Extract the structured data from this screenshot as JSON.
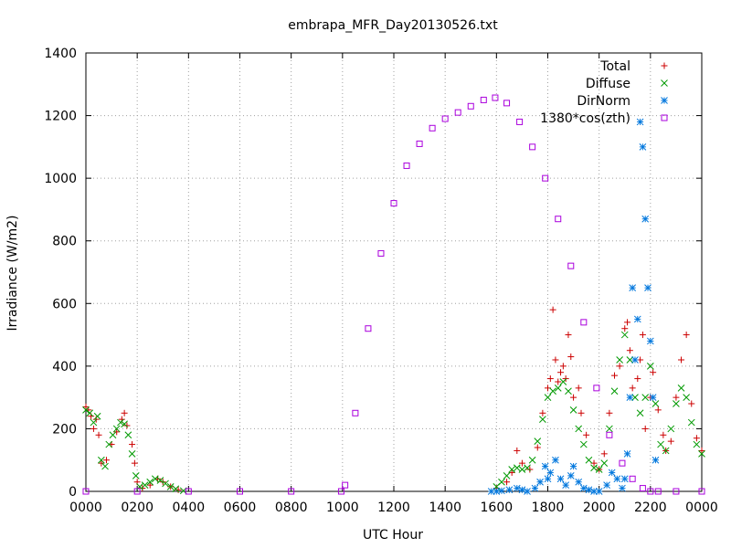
{
  "chart_data": {
    "type": "scatter",
    "title": "embrapa_MFR_Day20130526.txt",
    "xlabel": "UTC Hour",
    "ylabel": "Irradiance (W/m2)",
    "xlim": [
      0,
      24
    ],
    "ylim": [
      0,
      1400
    ],
    "x_ticks": [
      0,
      2,
      4,
      6,
      8,
      10,
      12,
      14,
      16,
      18,
      20,
      22,
      24
    ],
    "x_tick_labels": [
      "0000",
      "0200",
      "0400",
      "0600",
      "0800",
      "1000",
      "1200",
      "1400",
      "1600",
      "1800",
      "2000",
      "2200",
      "0000"
    ],
    "y_ticks": [
      0,
      200,
      400,
      600,
      800,
      1000,
      1200,
      1400
    ],
    "y_tick_labels": [
      "0",
      "200",
      "400",
      "600",
      "800",
      "1000",
      "1200",
      "1400"
    ],
    "grid": true,
    "legend_position": "top-right",
    "series": [
      {
        "name": "Total",
        "marker": "plus",
        "color": "#cc0000",
        "points": [
          [
            0.0,
            270
          ],
          [
            0.1,
            260
          ],
          [
            0.2,
            240
          ],
          [
            0.3,
            200
          ],
          [
            0.4,
            230
          ],
          [
            0.5,
            180
          ],
          [
            0.6,
            90
          ],
          [
            0.8,
            100
          ],
          [
            1.0,
            150
          ],
          [
            1.2,
            190
          ],
          [
            1.4,
            230
          ],
          [
            1.5,
            250
          ],
          [
            1.6,
            210
          ],
          [
            1.8,
            150
          ],
          [
            1.9,
            90
          ],
          [
            2.0,
            30
          ],
          [
            2.2,
            10
          ],
          [
            2.5,
            20
          ],
          [
            2.8,
            40
          ],
          [
            3.0,
            30
          ],
          [
            3.3,
            15
          ],
          [
            3.6,
            5
          ],
          [
            16.0,
            10
          ],
          [
            16.4,
            30
          ],
          [
            16.6,
            60
          ],
          [
            16.8,
            130
          ],
          [
            17.0,
            90
          ],
          [
            17.3,
            70
          ],
          [
            17.6,
            140
          ],
          [
            17.8,
            250
          ],
          [
            18.0,
            330
          ],
          [
            18.1,
            360
          ],
          [
            18.2,
            580
          ],
          [
            18.3,
            420
          ],
          [
            18.4,
            350
          ],
          [
            18.5,
            380
          ],
          [
            18.6,
            400
          ],
          [
            18.7,
            360
          ],
          [
            18.8,
            500
          ],
          [
            18.9,
            430
          ],
          [
            19.0,
            300
          ],
          [
            19.2,
            330
          ],
          [
            19.3,
            250
          ],
          [
            19.5,
            180
          ],
          [
            19.8,
            90
          ],
          [
            20.0,
            70
          ],
          [
            20.2,
            120
          ],
          [
            20.4,
            250
          ],
          [
            20.6,
            370
          ],
          [
            20.8,
            400
          ],
          [
            21.0,
            520
          ],
          [
            21.1,
            540
          ],
          [
            21.2,
            450
          ],
          [
            21.3,
            330
          ],
          [
            21.5,
            360
          ],
          [
            21.6,
            420
          ],
          [
            21.7,
            500
          ],
          [
            21.8,
            200
          ],
          [
            22.0,
            300
          ],
          [
            22.1,
            380
          ],
          [
            22.3,
            260
          ],
          [
            22.5,
            180
          ],
          [
            22.6,
            130
          ],
          [
            22.8,
            160
          ],
          [
            23.0,
            300
          ],
          [
            23.2,
            420
          ],
          [
            23.4,
            500
          ],
          [
            23.6,
            280
          ],
          [
            23.8,
            170
          ],
          [
            24.0,
            130
          ]
        ]
      },
      {
        "name": "Diffuse",
        "marker": "cross",
        "color": "#009900",
        "points": [
          [
            0.0,
            260
          ],
          [
            0.15,
            250
          ],
          [
            0.3,
            220
          ],
          [
            0.45,
            240
          ],
          [
            0.6,
            100
          ],
          [
            0.75,
            80
          ],
          [
            0.9,
            150
          ],
          [
            1.05,
            180
          ],
          [
            1.2,
            200
          ],
          [
            1.35,
            220
          ],
          [
            1.5,
            215
          ],
          [
            1.65,
            180
          ],
          [
            1.8,
            120
          ],
          [
            1.95,
            50
          ],
          [
            2.1,
            15
          ],
          [
            2.3,
            20
          ],
          [
            2.5,
            30
          ],
          [
            2.7,
            40
          ],
          [
            2.9,
            35
          ],
          [
            3.1,
            25
          ],
          [
            3.3,
            15
          ],
          [
            3.5,
            8
          ],
          [
            3.8,
            2
          ],
          [
            16.0,
            15
          ],
          [
            16.2,
            30
          ],
          [
            16.4,
            50
          ],
          [
            16.6,
            70
          ],
          [
            16.8,
            75
          ],
          [
            17.0,
            70
          ],
          [
            17.2,
            75
          ],
          [
            17.4,
            100
          ],
          [
            17.6,
            160
          ],
          [
            17.8,
            230
          ],
          [
            18.0,
            300
          ],
          [
            18.2,
            320
          ],
          [
            18.4,
            330
          ],
          [
            18.6,
            350
          ],
          [
            18.8,
            320
          ],
          [
            19.0,
            260
          ],
          [
            19.2,
            200
          ],
          [
            19.4,
            150
          ],
          [
            19.6,
            100
          ],
          [
            19.8,
            75
          ],
          [
            20.0,
            70
          ],
          [
            20.2,
            90
          ],
          [
            20.4,
            200
          ],
          [
            20.6,
            320
          ],
          [
            20.8,
            420
          ],
          [
            21.0,
            500
          ],
          [
            21.2,
            420
          ],
          [
            21.4,
            300
          ],
          [
            21.6,
            250
          ],
          [
            21.8,
            300
          ],
          [
            22.0,
            400
          ],
          [
            22.2,
            280
          ],
          [
            22.4,
            150
          ],
          [
            22.6,
            130
          ],
          [
            22.8,
            200
          ],
          [
            23.0,
            280
          ],
          [
            23.2,
            330
          ],
          [
            23.4,
            300
          ],
          [
            23.6,
            220
          ],
          [
            23.8,
            150
          ],
          [
            24.0,
            120
          ]
        ]
      },
      {
        "name": "DirNorm",
        "marker": "star",
        "color": "#0077dd",
        "points": [
          [
            15.8,
            0
          ],
          [
            16.0,
            0
          ],
          [
            16.2,
            2
          ],
          [
            16.5,
            5
          ],
          [
            16.8,
            10
          ],
          [
            17.0,
            5
          ],
          [
            17.2,
            0
          ],
          [
            17.5,
            10
          ],
          [
            17.7,
            30
          ],
          [
            17.9,
            80
          ],
          [
            18.0,
            40
          ],
          [
            18.1,
            60
          ],
          [
            18.3,
            100
          ],
          [
            18.5,
            40
          ],
          [
            18.7,
            20
          ],
          [
            18.9,
            50
          ],
          [
            19.0,
            80
          ],
          [
            19.2,
            30
          ],
          [
            19.4,
            10
          ],
          [
            19.6,
            5
          ],
          [
            19.8,
            0
          ],
          [
            20.0,
            0
          ],
          [
            20.3,
            20
          ],
          [
            20.5,
            60
          ],
          [
            20.7,
            40
          ],
          [
            20.9,
            10
          ],
          [
            21.0,
            40
          ],
          [
            21.1,
            120
          ],
          [
            21.2,
            300
          ],
          [
            21.3,
            650
          ],
          [
            21.4,
            420
          ],
          [
            21.5,
            550
          ],
          [
            21.6,
            1180
          ],
          [
            21.7,
            1100
          ],
          [
            21.8,
            870
          ],
          [
            21.9,
            650
          ],
          [
            22.0,
            480
          ],
          [
            22.1,
            300
          ],
          [
            22.2,
            100
          ]
        ]
      },
      {
        "name": "1380*cos(zth)",
        "marker": "square",
        "color": "#aa00dd",
        "points": [
          [
            0.0,
            0
          ],
          [
            2.0,
            0
          ],
          [
            4.0,
            0
          ],
          [
            6.0,
            0
          ],
          [
            8.0,
            0
          ],
          [
            9.95,
            0
          ],
          [
            10.1,
            20
          ],
          [
            10.5,
            250
          ],
          [
            11.0,
            520
          ],
          [
            11.5,
            760
          ],
          [
            12.0,
            920
          ],
          [
            12.5,
            1040
          ],
          [
            13.0,
            1110
          ],
          [
            13.5,
            1160
          ],
          [
            14.0,
            1190
          ],
          [
            14.5,
            1210
          ],
          [
            15.0,
            1230
          ],
          [
            15.5,
            1250
          ],
          [
            15.95,
            1257
          ],
          [
            16.4,
            1240
          ],
          [
            16.9,
            1180
          ],
          [
            17.4,
            1100
          ],
          [
            17.9,
            1000
          ],
          [
            18.4,
            870
          ],
          [
            18.9,
            720
          ],
          [
            19.4,
            540
          ],
          [
            19.9,
            330
          ],
          [
            20.4,
            180
          ],
          [
            20.9,
            90
          ],
          [
            21.3,
            40
          ],
          [
            21.7,
            10
          ],
          [
            22.0,
            0
          ],
          [
            22.3,
            0
          ],
          [
            23.0,
            0
          ],
          [
            24.0,
            0
          ]
        ]
      }
    ]
  }
}
